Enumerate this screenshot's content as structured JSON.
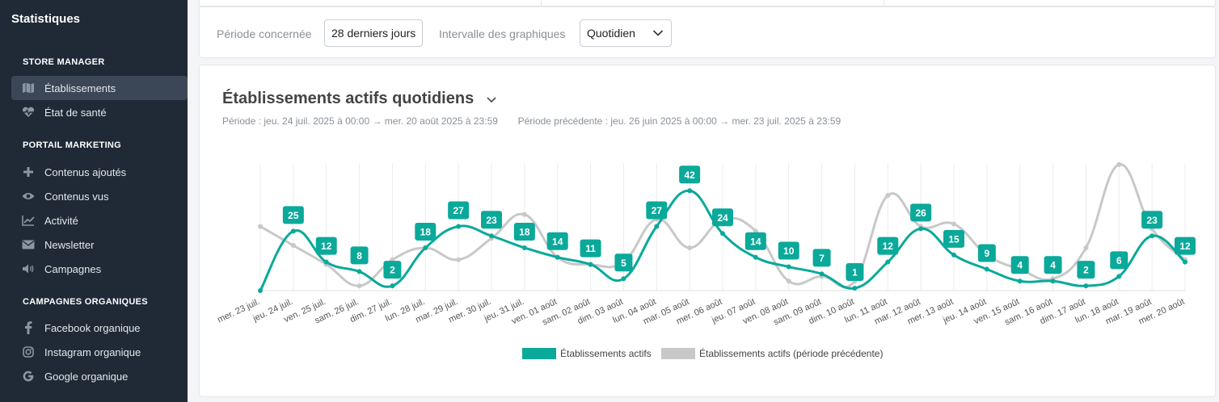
{
  "sidebar": {
    "app_title": "Statistiques",
    "sections": [
      {
        "title": "STORE MANAGER",
        "items": [
          {
            "label": "Établissements",
            "icon": "map-icon",
            "active": true
          },
          {
            "label": "État de santé",
            "icon": "heartbeat-icon",
            "active": false
          }
        ]
      },
      {
        "title": "PORTAIL MARKETING",
        "items": [
          {
            "label": "Contenus ajoutés",
            "icon": "plus-icon",
            "active": false
          },
          {
            "label": "Contenus vus",
            "icon": "eye-icon",
            "active": false
          },
          {
            "label": "Activité",
            "icon": "line-chart-icon",
            "active": false
          },
          {
            "label": "Newsletter",
            "icon": "envelope-icon",
            "active": false
          },
          {
            "label": "Campagnes",
            "icon": "speaker-icon",
            "active": false
          }
        ]
      },
      {
        "title": "CAMPAGNES ORGANIQUES",
        "items": [
          {
            "label": "Facebook organique",
            "icon": "facebook-icon",
            "active": false
          },
          {
            "label": "Instagram organique",
            "icon": "instagram-icon",
            "active": false
          },
          {
            "label": "Google organique",
            "icon": "google-icon",
            "active": false
          }
        ]
      }
    ]
  },
  "filters": {
    "period_label": "Période concernée",
    "period_value": "28 derniers jours",
    "interval_label": "Intervalle des graphiques",
    "interval_value": "Quotidien"
  },
  "card": {
    "title": "Établissements actifs quotidiens",
    "period_text": "Période :  jeu. 24 juil. 2025 à 00:00 → mer. 20 août 2025 à 23:59",
    "previous_period_text": "Période précédente :  jeu. 26 juin 2025 à 00:00 → mer. 23 juil. 2025 à 23:59"
  },
  "colors": {
    "accent": "#0aa99a",
    "previous": "#c8c8c8",
    "sidebar_bg": "#1f2a36"
  },
  "chart_data": {
    "type": "line",
    "categories": [
      "mer. 23 juil.",
      "jeu. 24 juil.",
      "ven. 25 juil.",
      "sam. 26 juil.",
      "dim. 27 juil.",
      "lun. 28 juil.",
      "mar. 29 juil.",
      "mer. 30 juil.",
      "jeu. 31 juil.",
      "ven. 01 août",
      "sam. 02 août",
      "dim. 03 août",
      "lun. 04 août",
      "mar. 05 août",
      "mer. 06 août",
      "jeu. 07 août",
      "ven. 08 août",
      "sam. 09 août",
      "dim. 10 août",
      "lun. 11 août",
      "mar. 12 août",
      "mer. 13 août",
      "jeu. 14 août",
      "ven. 15 août",
      "sam. 16 août",
      "dim. 17 août",
      "lun. 18 août",
      "mar. 19 août",
      "mer. 20 août"
    ],
    "series": [
      {
        "name": "Établissements actifs",
        "values": [
          0,
          25,
          12,
          8,
          2,
          18,
          27,
          23,
          18,
          14,
          11,
          5,
          27,
          42,
          24,
          14,
          10,
          7,
          1,
          12,
          26,
          15,
          9,
          4,
          4,
          2,
          6,
          23,
          12
        ],
        "color": "#0aa99a",
        "labeled": true
      },
      {
        "name": "Établissements actifs  (période précédente)",
        "values": [
          27,
          19,
          11,
          2,
          13,
          18,
          13,
          22,
          32,
          14,
          11,
          12,
          30,
          18,
          30,
          25,
          4,
          6,
          4,
          40,
          27,
          28,
          15,
          9,
          5,
          18,
          53,
          26,
          13
        ],
        "color": "#c8c8c8",
        "labeled": false
      }
    ],
    "ylim": [
      0,
      55
    ],
    "legend": "bottom-center",
    "grid": "vertical"
  }
}
